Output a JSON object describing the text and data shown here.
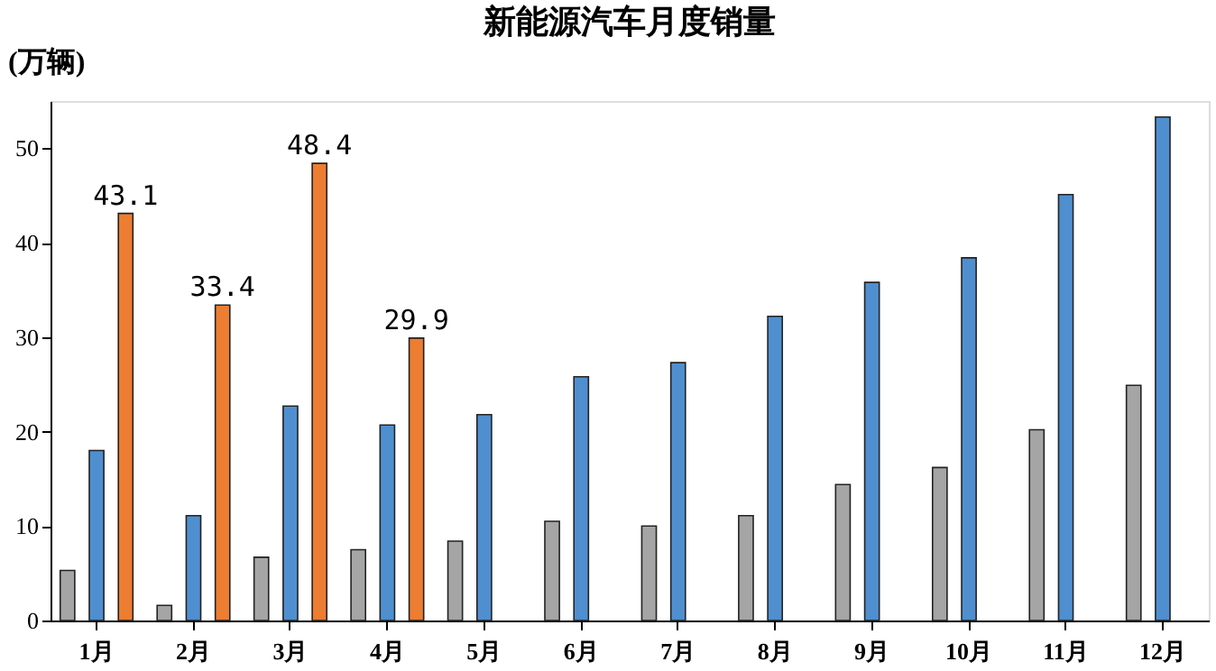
{
  "chart_data": {
    "type": "bar",
    "title": "新能源汽车月度销量",
    "ylabel": "(万辆)",
    "categories": [
      "1月",
      "2月",
      "3月",
      "4月",
      "5月",
      "6月",
      "7月",
      "8月",
      "9月",
      "10月",
      "11月",
      "12月"
    ],
    "series": [
      {
        "color": "#a5a5a5",
        "values": [
          5.3,
          1.6,
          6.7,
          7.5,
          8.4,
          10.5,
          10.0,
          11.1,
          14.4,
          16.2,
          20.2,
          24.9
        ]
      },
      {
        "color": "#4f8fd0",
        "values": [
          18.0,
          11.1,
          22.7,
          20.7,
          21.8,
          25.8,
          27.3,
          32.2,
          35.8,
          38.4,
          45.1,
          53.3
        ]
      },
      {
        "color": "#ed7d31",
        "values": [
          43.1,
          33.4,
          48.4,
          29.9,
          null,
          null,
          null,
          null,
          null,
          null,
          null,
          null
        ],
        "value_labels": [
          "43.1",
          "33.4",
          "48.4",
          "29.9",
          null,
          null,
          null,
          null,
          null,
          null,
          null,
          null
        ]
      }
    ],
    "ylim": [
      0,
      55
    ],
    "yticks": [
      0,
      10,
      20,
      30,
      40,
      50
    ],
    "grid": false,
    "legend": false
  }
}
